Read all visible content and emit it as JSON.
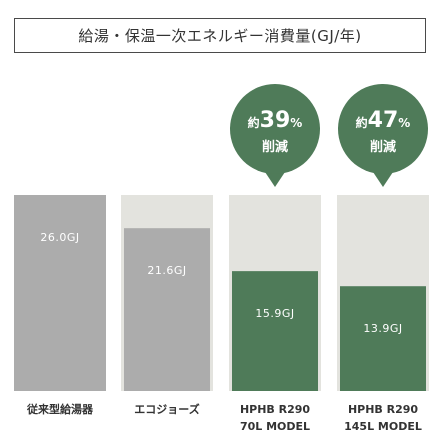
{
  "header": {
    "title": "給湯・保温一次エネルギー消費量(GJ/年)"
  },
  "colors": {
    "max_bg": "#e3e3de",
    "base_gray": "#acacac",
    "green": "#4f7b59",
    "badge": "#4f7b59"
  },
  "chart_data": {
    "type": "bar",
    "title": "給湯・保温一次エネルギー消費量(GJ/年)",
    "unit": "GJ",
    "categories": [
      [
        "従来型給湯器"
      ],
      [
        "エコジョーズ"
      ],
      [
        "HPHB R290",
        "70L MODEL"
      ],
      [
        "HPHB R290",
        "145L MODEL"
      ]
    ],
    "values": [
      26.0,
      21.6,
      15.9,
      13.9
    ],
    "value_labels": [
      "26.0GJ",
      "21.6GJ",
      "15.9GJ",
      "13.9GJ"
    ],
    "ylim": [
      0,
      26.0
    ],
    "reductions": [
      null,
      null,
      {
        "prefix": "約",
        "value": "39",
        "suffix": "%",
        "label": "削減"
      },
      {
        "prefix": "約",
        "value": "47",
        "suffix": "%",
        "label": "削減"
      }
    ]
  }
}
